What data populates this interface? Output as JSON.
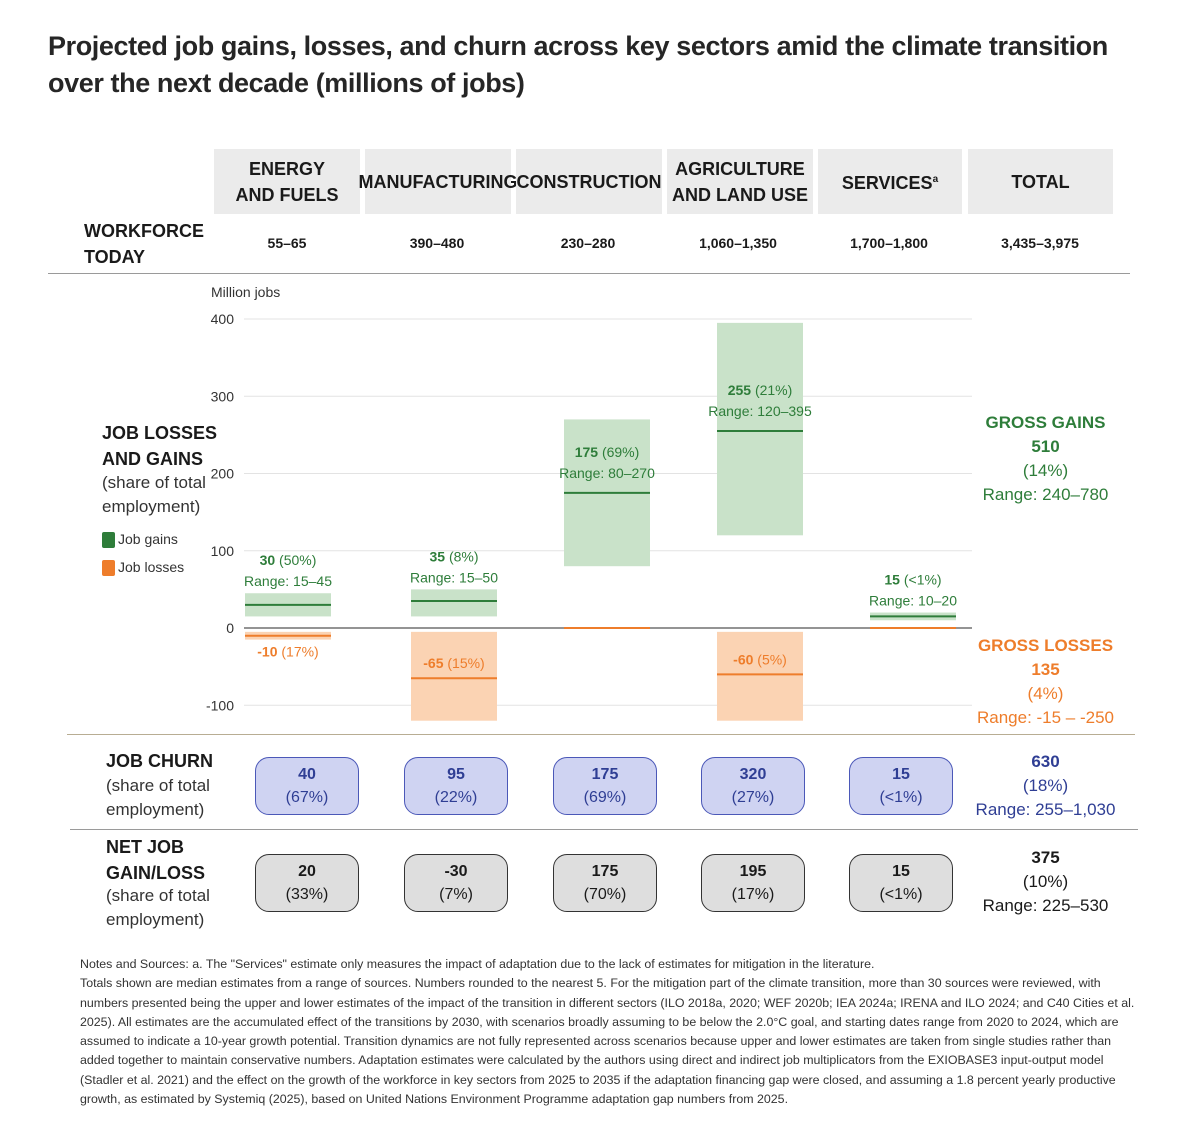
{
  "title": "Projected job gains, losses, and churn across key sectors amid the climate transition over the next decade (millions of jobs)",
  "sectors": [
    {
      "name": "ENERGY\nAND FUELS",
      "sup": "",
      "workforce": "55–65"
    },
    {
      "name": "MANUFACTURING",
      "sup": "",
      "workforce": "390–480"
    },
    {
      "name": "CONSTRUCTION",
      "sup": "",
      "workforce": "230–280"
    },
    {
      "name": "AGRICULTURE\nAND LAND USE",
      "sup": "",
      "workforce": "1,060–1,350"
    },
    {
      "name": "SERVICES",
      "sup": "a",
      "workforce": "1,700–1,800"
    },
    {
      "name": "TOTAL",
      "sup": "",
      "workforce": "3,435–3,975"
    }
  ],
  "rows": {
    "workforce_label": "WORKFORCE\nTODAY",
    "losses_gains_label": "JOB LOSSES\nAND GAINS",
    "losses_gains_sub": "(share of total\nemployment)",
    "churn_label": "JOB CHURN",
    "churn_sub": "(share of total\nemployment)",
    "net_label": "NET JOB\nGAIN/LOSS",
    "net_sub": "(share of total\nemployment)"
  },
  "legend": {
    "gains": "Job gains",
    "losses": "Job losses"
  },
  "colors": {
    "gain": "#2e7d3a",
    "gain_fill": "#c9e2c9",
    "loss": "#ee7d2b",
    "loss_fill": "#fbd3b3",
    "churn": "#2f3e94",
    "churn_fill": "#cfd3f2",
    "net_fill": "#dedede"
  },
  "chart_data": {
    "type": "bar",
    "ylabel": "Million jobs",
    "ylim": [
      -120,
      420
    ],
    "yticks": [
      400,
      300,
      200,
      100,
      0,
      -100
    ],
    "grid": true,
    "series": [
      {
        "name": "Job gains",
        "values": [
          30,
          35,
          175,
          255,
          15
        ],
        "ranges": [
          [
            15,
            45
          ],
          [
            15,
            50
          ],
          [
            80,
            270
          ],
          [
            120,
            395
          ],
          [
            10,
            20
          ]
        ],
        "value_labels": [
          "30",
          "35",
          "175",
          "255",
          "15"
        ],
        "share_labels": [
          "(50%)",
          "(8%)",
          "(69%)",
          "(21%)",
          "(<1%)"
        ],
        "range_labels": [
          "Range: 15–45",
          "Range: 15–50",
          "Range: 80–270",
          "Range: 120–395",
          "Range: 10–20"
        ]
      },
      {
        "name": "Job losses",
        "values": [
          -10,
          -65,
          0,
          -60,
          0
        ],
        "ranges": [
          [
            -5,
            -15
          ],
          [
            -5,
            -120
          ],
          [
            0,
            0
          ],
          [
            -5,
            -120
          ],
          [
            0,
            0
          ]
        ],
        "value_labels": [
          "-10",
          "-65",
          "",
          "-60",
          ""
        ],
        "share_labels": [
          "(17%)",
          "(15%)",
          "",
          "(5%)",
          ""
        ]
      }
    ]
  },
  "gross_gains": {
    "title": "GROSS GAINS",
    "value": "510",
    "share": "(14%)",
    "range": "Range: 240–780"
  },
  "gross_losses": {
    "title": "GROSS LOSSES",
    "value": "135",
    "share": "(4%)",
    "range": "Range: -15 – -250"
  },
  "churn": [
    {
      "value": "40",
      "share": "(67%)"
    },
    {
      "value": "95",
      "share": "(22%)"
    },
    {
      "value": "175",
      "share": "(69%)"
    },
    {
      "value": "320",
      "share": "(27%)"
    },
    {
      "value": "15",
      "share": "(<1%)"
    }
  ],
  "churn_total": {
    "value": "630",
    "share": "(18%)",
    "range": "Range: 255–1,030"
  },
  "net": [
    {
      "value": "20",
      "share": "(33%)"
    },
    {
      "value": "-30",
      "share": "(7%)"
    },
    {
      "value": "175",
      "share": "(70%)"
    },
    {
      "value": "195",
      "share": "(17%)"
    },
    {
      "value": "15",
      "share": "(<1%)"
    }
  ],
  "net_total": {
    "value": "375",
    "share": "(10%)",
    "range": "Range: 225–530"
  },
  "notes": [
    "Notes and Sources: a. The \"Services\" estimate only measures the impact of adaptation due to the lack of estimates for mitigation in the literature.",
    "Totals shown are median estimates from a range of sources. Numbers rounded to the nearest 5. For the mitigation part of the climate transition, more than 30 sources were reviewed, with numbers presented being the upper and lower estimates of the impact of the transition in different sectors (ILO 2018a, 2020; WEF 2020b; IEA 2024a; IRENA and ILO 2024; and C40 Cities et al. 2025). All estimates are the accumulated effect of the transitions by 2030, with scenarios broadly assuming to be below the 2.0°C goal, and starting dates range from 2020 to 2024, which are assumed to indicate a 10-year growth potential. Transition dynamics are not fully represented across scenarios because upper and lower estimates are taken from single studies rather than added together to maintain conservative numbers. Adaptation estimates were calculated by the authors using direct and indirect job multiplicators from the EXIOBASE3 input-output model (Stadler et al. 2021) and the effect on the growth of the workforce in key sectors from 2025 to 2035 if the adaptation financing gap were closed, and assuming a 1.8 percent yearly productive growth, as estimated by Systemiq (2025), based on United Nations Environment Programme adaptation gap numbers from 2025."
  ]
}
